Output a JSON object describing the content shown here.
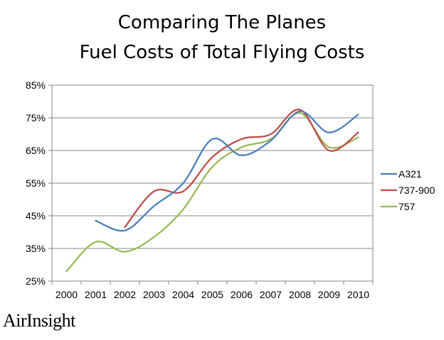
{
  "chart_data": {
    "type": "line",
    "title": "Comparing The Planes",
    "subtitle": "Fuel Costs of Total Flying Costs",
    "categories": [
      "2000",
      "2001",
      "2002",
      "2003",
      "2004",
      "2005",
      "2006",
      "2007",
      "2008",
      "2009",
      "2010"
    ],
    "y_ticks": [
      "25%",
      "35%",
      "45%",
      "55%",
      "65%",
      "75%",
      "85%"
    ],
    "ylim": [
      25,
      85
    ],
    "grid": true,
    "legend": "right",
    "series": [
      {
        "name": "A321",
        "color": "#4a7ebb",
        "values": [
          null,
          43.5,
          40.5,
          48,
          55,
          68.5,
          63.5,
          68,
          77,
          70.5,
          76
        ]
      },
      {
        "name": "737-900",
        "color": "#be4b48",
        "values": [
          null,
          null,
          41.5,
          52.5,
          52.5,
          63,
          68.5,
          70,
          77.5,
          65,
          70.5
        ]
      },
      {
        "name": "757",
        "color": "#98b954",
        "values": [
          28,
          37,
          34,
          38.5,
          47,
          60,
          66,
          68.5,
          76.5,
          66,
          69
        ]
      }
    ]
  },
  "brand": "AirInsight"
}
